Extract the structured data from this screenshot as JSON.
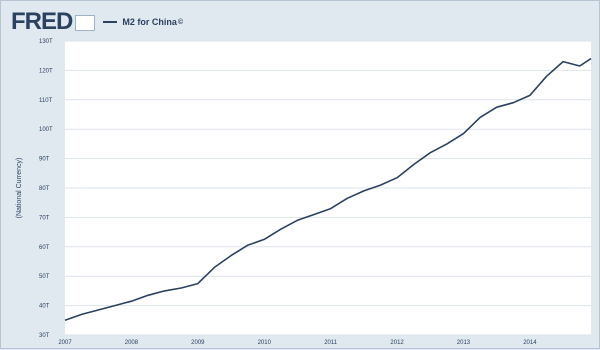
{
  "header": {
    "logo_text": "FRED",
    "legend_dash": "—",
    "series_label": "M2 for China",
    "series_marker": "©"
  },
  "chart_data": {
    "type": "line",
    "xlabel": "",
    "ylabel": "(National Currency)",
    "y_scale": "linear",
    "y_unit_note": "tick labels like '40T' read as trillions",
    "ylim": [
      30,
      130
    ],
    "y_ticks": [
      30,
      40,
      50,
      60,
      70,
      80,
      90,
      100,
      110,
      120,
      130
    ],
    "y_tick_labels": [
      "30T",
      "40T",
      "50T",
      "60T",
      "70T",
      "80T",
      "90T",
      "100T",
      "110T",
      "120T",
      "130T"
    ],
    "xlim": [
      2007.0,
      2014.92
    ],
    "x_ticks": [
      2007,
      2008,
      2009,
      2010,
      2011,
      2012,
      2013,
      2014
    ],
    "x_tick_labels": [
      "2007",
      "2008",
      "2009",
      "2010",
      "2011",
      "2012",
      "2013",
      "2014"
    ],
    "grid": true,
    "legend_position": "top-left",
    "line_color": "#2b4160",
    "series": [
      {
        "name": "M2 for China",
        "x": [
          2007.0,
          2007.25,
          2007.5,
          2007.75,
          2008.0,
          2008.25,
          2008.5,
          2008.75,
          2009.0,
          2009.25,
          2009.5,
          2009.75,
          2010.0,
          2010.25,
          2010.5,
          2010.75,
          2011.0,
          2011.25,
          2011.5,
          2011.75,
          2012.0,
          2012.25,
          2012.5,
          2012.75,
          2013.0,
          2013.25,
          2013.5,
          2013.75,
          2014.0,
          2014.25,
          2014.5,
          2014.75,
          2014.92
        ],
        "y": [
          35.0,
          37.0,
          38.5,
          40.0,
          41.5,
          43.5,
          45.0,
          46.0,
          47.5,
          53.0,
          57.0,
          60.5,
          62.5,
          66.0,
          69.0,
          71.0,
          73.0,
          76.5,
          79.0,
          81.0,
          83.5,
          88.0,
          92.0,
          95.0,
          98.5,
          104.0,
          107.5,
          109.0,
          111.5,
          118.0,
          123.0,
          121.5,
          124.0
        ]
      }
    ]
  }
}
